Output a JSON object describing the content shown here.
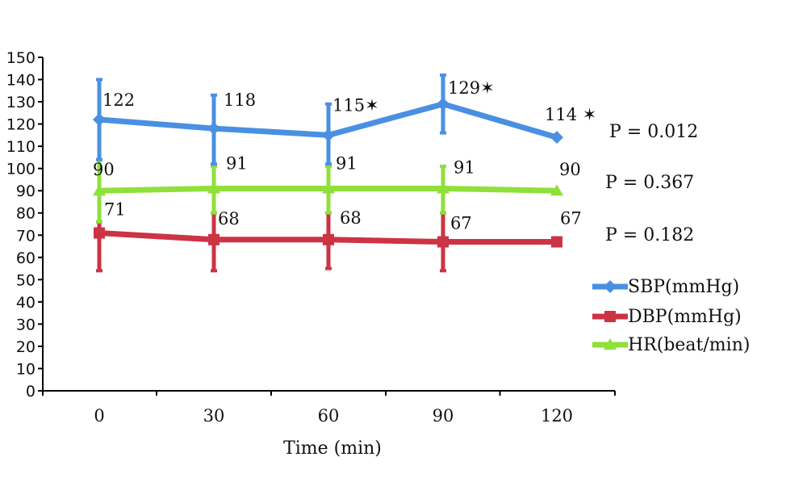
{
  "chart_data": {
    "type": "line",
    "title": "",
    "xlabel": "Time (min)",
    "ylabel": "",
    "categories": [
      "0",
      "30",
      "60",
      "90",
      "120"
    ],
    "ylim": [
      0,
      150
    ],
    "yticks": [
      0,
      10,
      20,
      30,
      40,
      50,
      60,
      70,
      80,
      90,
      100,
      110,
      120,
      130,
      140,
      150
    ],
    "legend": "right",
    "series": [
      {
        "name": "SBP(mmHg)",
        "color": "#4a90e2",
        "marker": "diamond",
        "values": [
          122,
          118,
          115,
          129,
          114
        ],
        "labels": [
          "122",
          "118",
          "115✶",
          "129✶",
          "114 ✶"
        ],
        "error": [
          [
            104,
            140
          ],
          [
            102,
            133
          ],
          [
            102,
            129
          ],
          [
            116,
            142
          ],
          null
        ]
      },
      {
        "name": "DBP(mmHg)",
        "color": "#cc3344",
        "marker": "square",
        "values": [
          71,
          68,
          68,
          67,
          67
        ],
        "labels": [
          "71",
          "68",
          "68",
          "67",
          "67"
        ],
        "error": [
          [
            54,
            76
          ],
          [
            54,
            80
          ],
          [
            55,
            80
          ],
          [
            54,
            80
          ],
          null
        ]
      },
      {
        "name": "HR(beat/min)",
        "color": "#8fe03a",
        "marker": "triangle",
        "values": [
          90,
          91,
          91,
          91,
          90
        ],
        "labels": [
          "90",
          "91",
          "91",
          "91",
          "90"
        ],
        "error": [
          [
            76,
            104
          ],
          [
            80,
            101
          ],
          [
            80,
            101
          ],
          [
            80,
            101
          ],
          null
        ]
      }
    ],
    "annotations": [
      "P = 0.012",
      "P = 0.367",
      "P = 0.182"
    ]
  }
}
